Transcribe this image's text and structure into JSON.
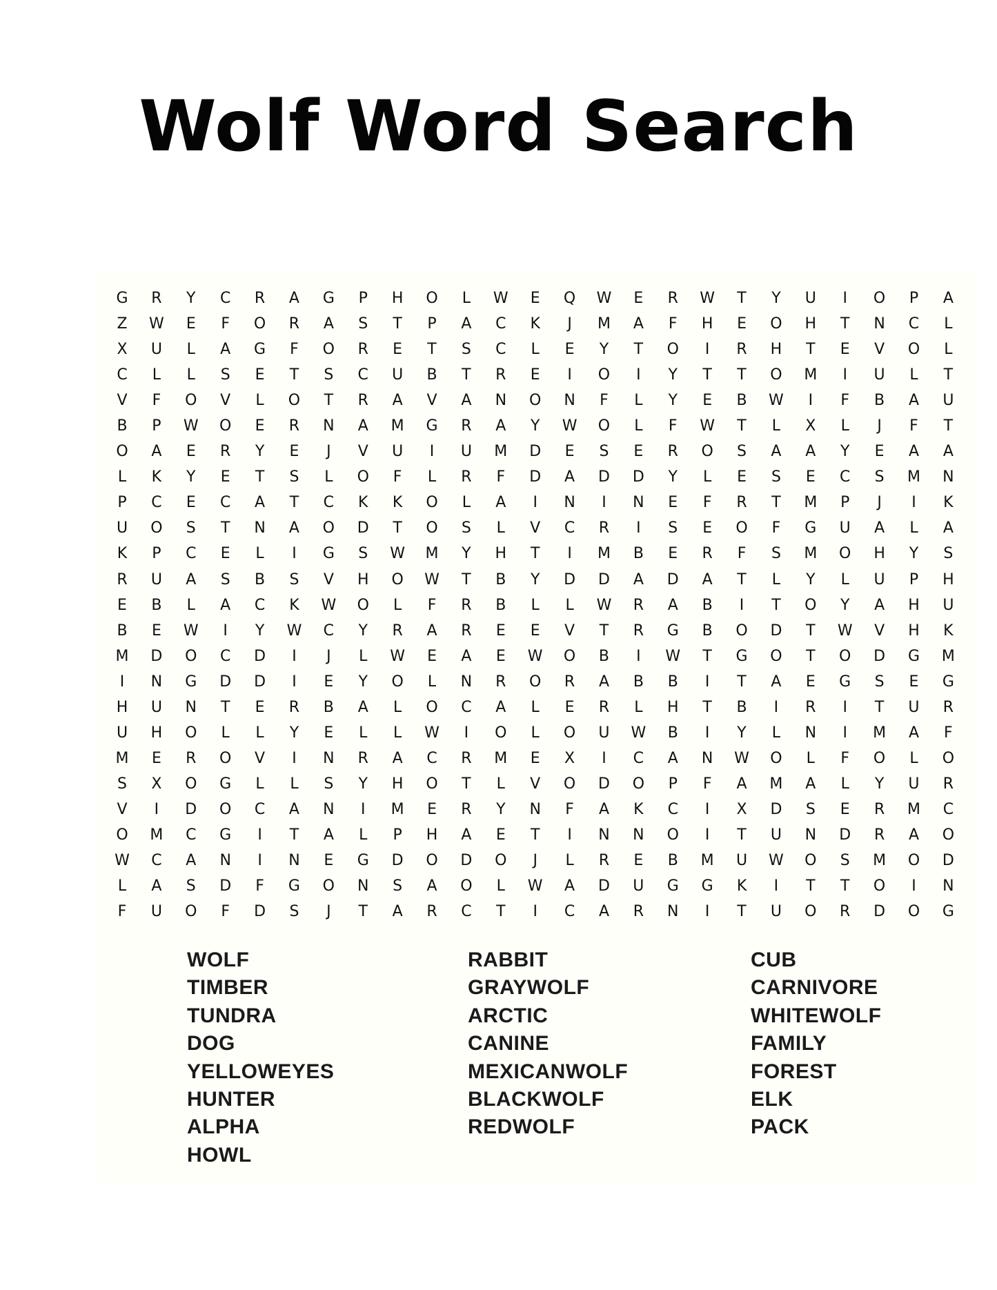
{
  "title": "Wolf Word Search",
  "grid": [
    "GRYCRAGPHOLWEQWERWTYUIOPA",
    "ZWEFORASTPACKJMAFHEOHTNCL",
    "XULAGFORETSCLEYTOIRHTEVOL",
    "CLLSETSCUBTREIOIYTTOMIULT",
    "VFOVLOTRAVANONFLYEBWIFBAU",
    "BPWOERNAMGRAYWOLFWTLXLJFT",
    "OAERYEJVUIUMDESEROSAAYEAA",
    "LKYETSLOFLRFDADDYLESECSMN",
    "PCECATCKKOLAININEFRTMPJIK",
    "UOSTNAODTOSLVCRISEOFGUALA",
    "KPCELIGSWMYHTIMBERFSMOHYS",
    "RUASBSVHOWTBYDDADATLYLUPH",
    "EBLACKWOLFRBLLWRABITOYAHU",
    "BEWIYWCYRAREEVTRGBODTWVHK",
    "MDOCDIJLWEAEWOBIWTGOTODGM",
    "INGDDIEYOLNRORABBITAEGSEG",
    "HUNTERBALOCALERLHTBIRITUR",
    "UHOLLYELLWIOLOUWBIYLNIMAF",
    "MEROVINRACRMEXICANWOLFOLO",
    "SXOGLLSYHOTLVODOPFAMALYUR",
    "VIDOCANIMERYNFAKCIXDSERMC",
    "OMCGITALPHAETINNOITUNDRAO",
    "WCANINEGDODOJLREBMUWOSMOD",
    "LASDFGONSAOLWADUGGKITTOIN",
    "FUOFDSJTARCTICARNITUORDOG"
  ],
  "word_columns": [
    [
      "WOLF",
      "TIMBER",
      "TUNDRA",
      "DOG",
      "YELLOWEYES",
      "HUNTER",
      "ALPHA",
      "HOWL"
    ],
    [
      "RABBIT",
      "GRAYWOLF",
      "ARCTIC",
      "CANINE",
      "MEXICANWOLF",
      "BLACKWOLF",
      "REDWOLF"
    ],
    [
      "CUB",
      "CARNIVORE",
      "WHITEWOLF",
      "FAMILY",
      "FOREST",
      "ELK",
      "PACK"
    ]
  ]
}
